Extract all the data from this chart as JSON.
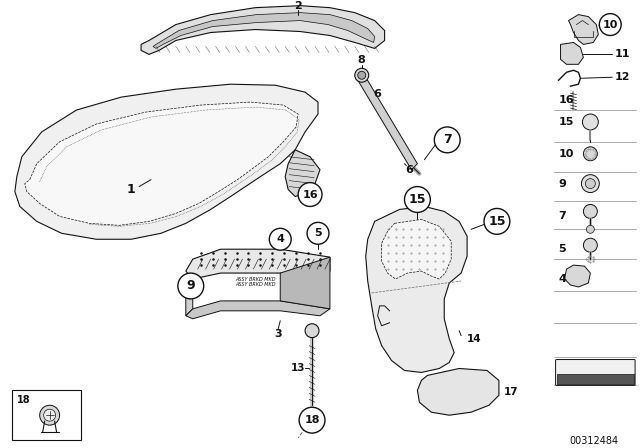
{
  "bg_color": "#ffffff",
  "part_number": "00312484",
  "fig_width": 6.4,
  "fig_height": 4.48,
  "dpi": 100
}
